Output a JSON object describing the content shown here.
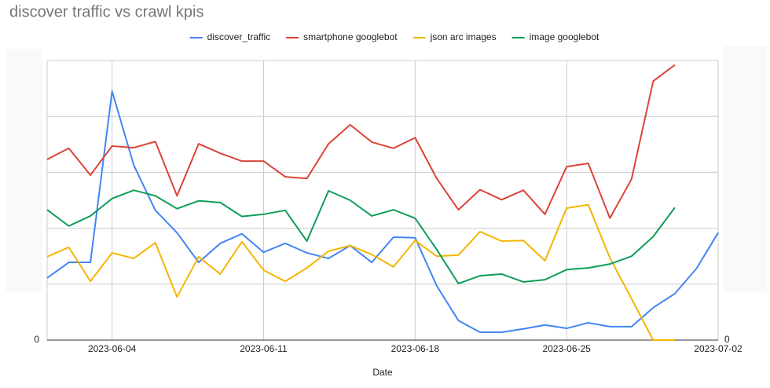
{
  "chart_data": {
    "type": "line",
    "title": "discover traffic vs crawl kpis",
    "x_label": "Date",
    "x": [
      "2023-06-01",
      "2023-06-02",
      "2023-06-03",
      "2023-06-04",
      "2023-06-05",
      "2023-06-06",
      "2023-06-07",
      "2023-06-08",
      "2023-06-09",
      "2023-06-10",
      "2023-06-11",
      "2023-06-12",
      "2023-06-13",
      "2023-06-14",
      "2023-06-15",
      "2023-06-16",
      "2023-06-17",
      "2023-06-18",
      "2023-06-19",
      "2023-06-20",
      "2023-06-21",
      "2023-06-22",
      "2023-06-23",
      "2023-06-24",
      "2023-06-25",
      "2023-06-26",
      "2023-06-27",
      "2023-06-28",
      "2023-06-29",
      "2023-06-30",
      "2023-07-01",
      "2023-07-02"
    ],
    "xlim": [
      "2023-06-01",
      "2023-07-02"
    ],
    "xticks": [
      "2023-06-04",
      "2023-06-11",
      "2023-06-18",
      "2023-06-25",
      "2023-07-02"
    ],
    "ylim": [
      0,
      5
    ],
    "yticks": [
      0
    ],
    "y2lim": [
      0,
      5
    ],
    "y2ticks": [
      0
    ],
    "ygrid": [
      1,
      2,
      3,
      4,
      5
    ],
    "legend": "top",
    "series": [
      {
        "name": "discover_traffic",
        "color": "#4285f4",
        "values": [
          1.11,
          1.39,
          1.39,
          4.45,
          3.13,
          2.32,
          1.92,
          1.39,
          1.73,
          1.9,
          1.57,
          1.73,
          1.56,
          1.46,
          1.69,
          1.39,
          1.84,
          1.83,
          0.97,
          0.35,
          0.14,
          0.14,
          0.2,
          0.27,
          0.21,
          0.31,
          0.24,
          0.24,
          0.58,
          0.83,
          1.28,
          1.92
        ]
      },
      {
        "name": "smartphone googlebot",
        "color": "#db4437",
        "values": [
          3.23,
          3.43,
          2.95,
          3.47,
          3.44,
          3.55,
          2.58,
          3.51,
          3.34,
          3.2,
          3.2,
          2.92,
          2.89,
          3.51,
          3.85,
          3.54,
          3.43,
          3.62,
          2.89,
          2.33,
          2.69,
          2.51,
          2.68,
          2.25,
          3.1,
          3.16,
          2.18,
          2.88,
          4.63,
          4.92,
          null,
          null
        ]
      },
      {
        "name": "json arc images",
        "color": "#f4b400",
        "values": [
          1.49,
          1.66,
          1.05,
          1.56,
          1.46,
          1.74,
          0.77,
          1.49,
          1.18,
          1.76,
          1.25,
          1.05,
          1.29,
          1.59,
          1.69,
          1.53,
          1.31,
          1.78,
          1.5,
          1.52,
          1.94,
          1.77,
          1.78,
          1.42,
          2.36,
          2.42,
          1.47,
          0.74,
          0,
          0,
          null,
          null
        ]
      },
      {
        "name": "image googlebot",
        "color": "#0f9d58",
        "values": [
          2.33,
          2.04,
          2.22,
          2.53,
          2.68,
          2.58,
          2.35,
          2.49,
          2.46,
          2.21,
          2.25,
          2.32,
          1.77,
          2.67,
          2.5,
          2.22,
          2.33,
          2.18,
          1.62,
          1.01,
          1.15,
          1.18,
          1.04,
          1.08,
          1.26,
          1.29,
          1.36,
          1.5,
          1.85,
          2.37,
          null,
          null
        ]
      }
    ]
  }
}
